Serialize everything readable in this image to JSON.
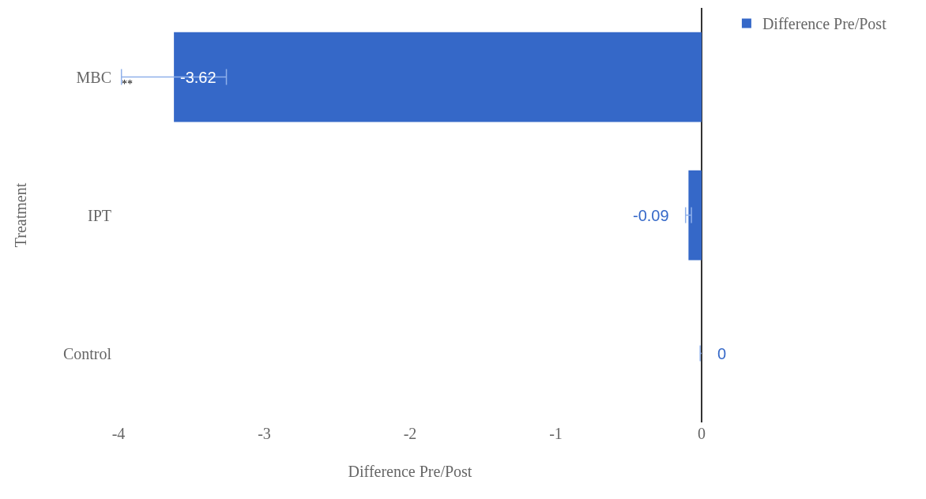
{
  "chart_data": {
    "type": "bar",
    "orientation": "horizontal",
    "xlabel": "Difference Pre/Post",
    "ylabel": "Treatment",
    "categories": [
      "MBC",
      "IPT",
      "Control"
    ],
    "series": [
      {
        "name": "Difference Pre/Post",
        "color": "#3568c8",
        "values": [
          -3.62,
          -0.09,
          0
        ],
        "errors": [
          0.36,
          0.02,
          0.01
        ]
      }
    ],
    "xlim": [
      -4,
      0
    ],
    "xticks": [
      -4,
      -3,
      -2,
      -1,
      0
    ],
    "data_labels": true,
    "grid": false,
    "legend": "top right",
    "annotations": [
      "**"
    ]
  }
}
